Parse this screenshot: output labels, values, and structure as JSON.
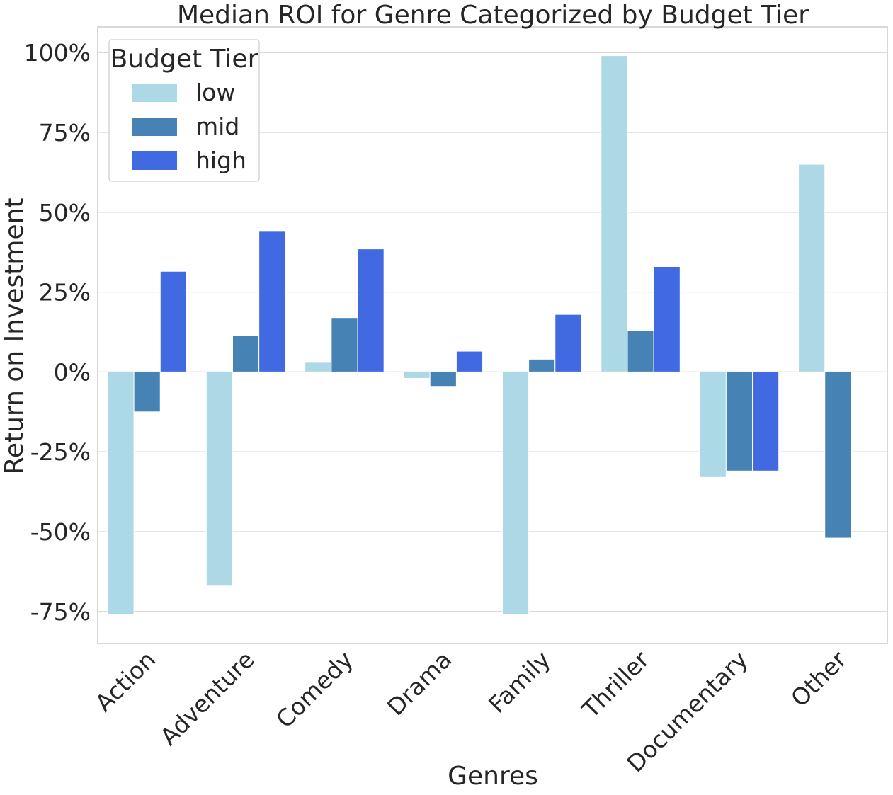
{
  "chart_data": {
    "type": "bar",
    "title": "Median ROI for Genre Categorized by Budget Tier",
    "xlabel": "Genres",
    "ylabel": "Return on Investment",
    "categories": [
      "Action",
      "Adventure",
      "Comedy",
      "Drama",
      "Family",
      "Thriller",
      "Documentary",
      "Other"
    ],
    "series": [
      {
        "name": "low",
        "color": "#add8e6",
        "values": [
          -76,
          -67,
          3,
          -2,
          -76,
          99,
          -33,
          65
        ]
      },
      {
        "name": "mid",
        "color": "#4682b4",
        "values": [
          -12.5,
          11.5,
          17,
          -4.5,
          4,
          13,
          -31,
          -52
        ]
      },
      {
        "name": "high",
        "color": "#4169e1",
        "values": [
          31.5,
          44,
          38.5,
          6.5,
          18,
          33,
          -31,
          null
        ]
      }
    ],
    "ylim": [
      -85,
      108
    ],
    "yticks": [
      100,
      75,
      50,
      25,
      0,
      -25,
      -50,
      -75
    ],
    "ytick_labels": [
      "100%",
      "75%",
      "50%",
      "25%",
      "0%",
      "-25%",
      "-50%",
      "-75%"
    ],
    "grid": true,
    "legend": {
      "title": "Budget Tier",
      "position": "top-left"
    }
  }
}
